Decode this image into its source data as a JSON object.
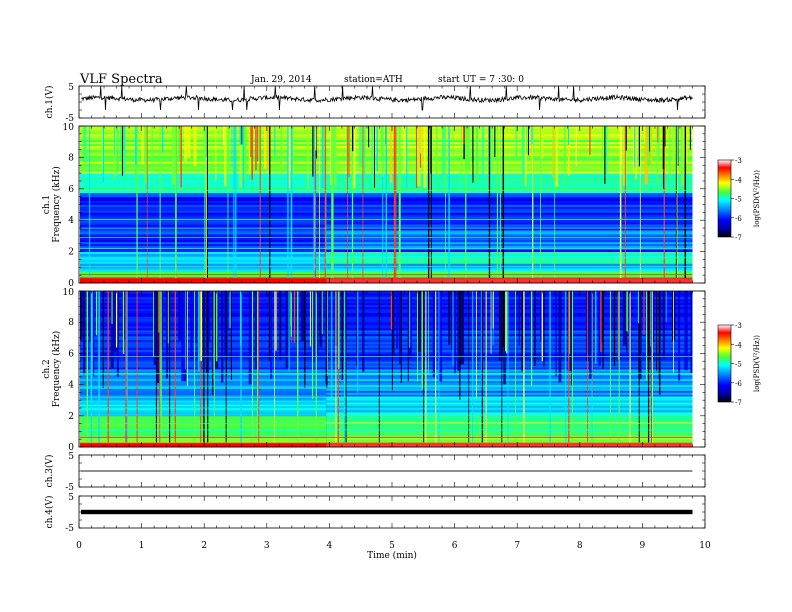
{
  "header": {
    "title": "VLF  Spectra",
    "date": "Jan. 29, 2014",
    "station": "station=ATH",
    "start_ut": "start  UT  =   7 :30: 0"
  },
  "chart_data": [
    {
      "id": "ch1-waveform",
      "type": "line",
      "ylabel": "ch.1(V)",
      "ylim": [
        -5,
        5
      ],
      "y_ticks": [
        "5",
        "-5"
      ],
      "x_range_min": [
        0,
        9.8
      ],
      "description_values": "noisy trace near ~1 V with spikes",
      "baseline": 1
    },
    {
      "id": "ch1-spectrogram",
      "type": "heatmap",
      "ylabel": "ch.1\nFrequency (kHz)",
      "ylabel_top": "ch.1",
      "ylabel_bottom": "Frequency (kHz)",
      "ylim": [
        0,
        10
      ],
      "y_ticks": [
        "0",
        "2",
        "4",
        "6",
        "8",
        "10"
      ],
      "colorbar": {
        "label": "log(PSD(V²/Hz))",
        "range": [
          -7,
          -3
        ],
        "ticks": [
          "-3",
          "-4",
          "-5",
          "-6",
          "-7"
        ]
      }
    },
    {
      "id": "ch2-spectrogram",
      "type": "heatmap",
      "ylabel_top": "ch.2",
      "ylabel_bottom": "Frequency (kHz)",
      "ylim": [
        0,
        10
      ],
      "y_ticks": [
        "0",
        "2",
        "4",
        "6",
        "8",
        "10"
      ],
      "colorbar": {
        "label": "log(PSD(V²/Hz))",
        "range": [
          -7,
          -3
        ],
        "ticks": [
          "-3",
          "-4",
          "-5",
          "-6",
          "-7"
        ]
      }
    },
    {
      "id": "ch3-waveform",
      "type": "line",
      "ylabel": "ch.3(V)",
      "ylim": [
        -5,
        5
      ],
      "y_ticks": [
        "5",
        "-5"
      ],
      "baseline": 0
    },
    {
      "id": "ch4-waveform",
      "type": "line",
      "ylabel": "ch.4(V)",
      "ylim": [
        -5,
        5
      ],
      "y_ticks": [
        "5",
        "-5"
      ],
      "baseline": 0
    }
  ],
  "xaxis": {
    "label": "Time  (min)",
    "ticks": [
      "0",
      "1",
      "2",
      "3",
      "4",
      "5",
      "6",
      "7",
      "8",
      "9",
      "10"
    ],
    "xlim": [
      0,
      10
    ],
    "data_end": 9.8
  },
  "colors": {
    "scale": [
      "#000000",
      "#00007f",
      "#0000ff",
      "#007fff",
      "#00ffff",
      "#7fff7f",
      "#ffff00",
      "#ff7f00",
      "#ff0000",
      "#ffffff"
    ]
  }
}
